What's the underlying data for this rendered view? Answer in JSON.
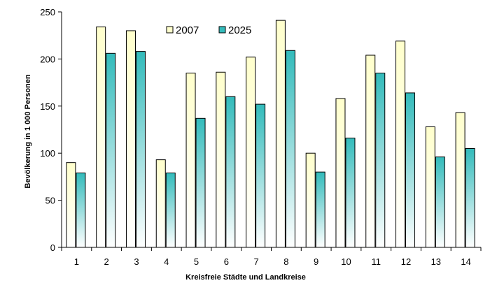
{
  "chart_data": {
    "type": "bar",
    "title": "",
    "xlabel": "Kreisfreie Städte und Landkreise",
    "ylabel": "Bevölkerung in 1 000 Personen",
    "categories": [
      "1",
      "2",
      "3",
      "4",
      "5",
      "6",
      "7",
      "8",
      "9",
      "10",
      "11",
      "12",
      "13",
      "14"
    ],
    "series": [
      {
        "name": "2007",
        "values": [
          90,
          234,
          230,
          93,
          185,
          186,
          202,
          241,
          100,
          158,
          204,
          219,
          128,
          143
        ],
        "color_top": "#ffffcc",
        "color_bottom": "#ffffff"
      },
      {
        "name": "2025",
        "values": [
          79,
          206,
          208,
          79,
          137,
          160,
          152,
          209,
          80,
          116,
          185,
          164,
          96,
          105
        ],
        "color_top": "#33bbbb",
        "color_bottom": "#ffffff"
      }
    ],
    "ylim": [
      0,
      250
    ],
    "yticks": [
      "0",
      "50",
      "100",
      "150",
      "200",
      "250"
    ],
    "grid": false,
    "legend_position": "top-center",
    "bar_outline_color": "#000000"
  }
}
